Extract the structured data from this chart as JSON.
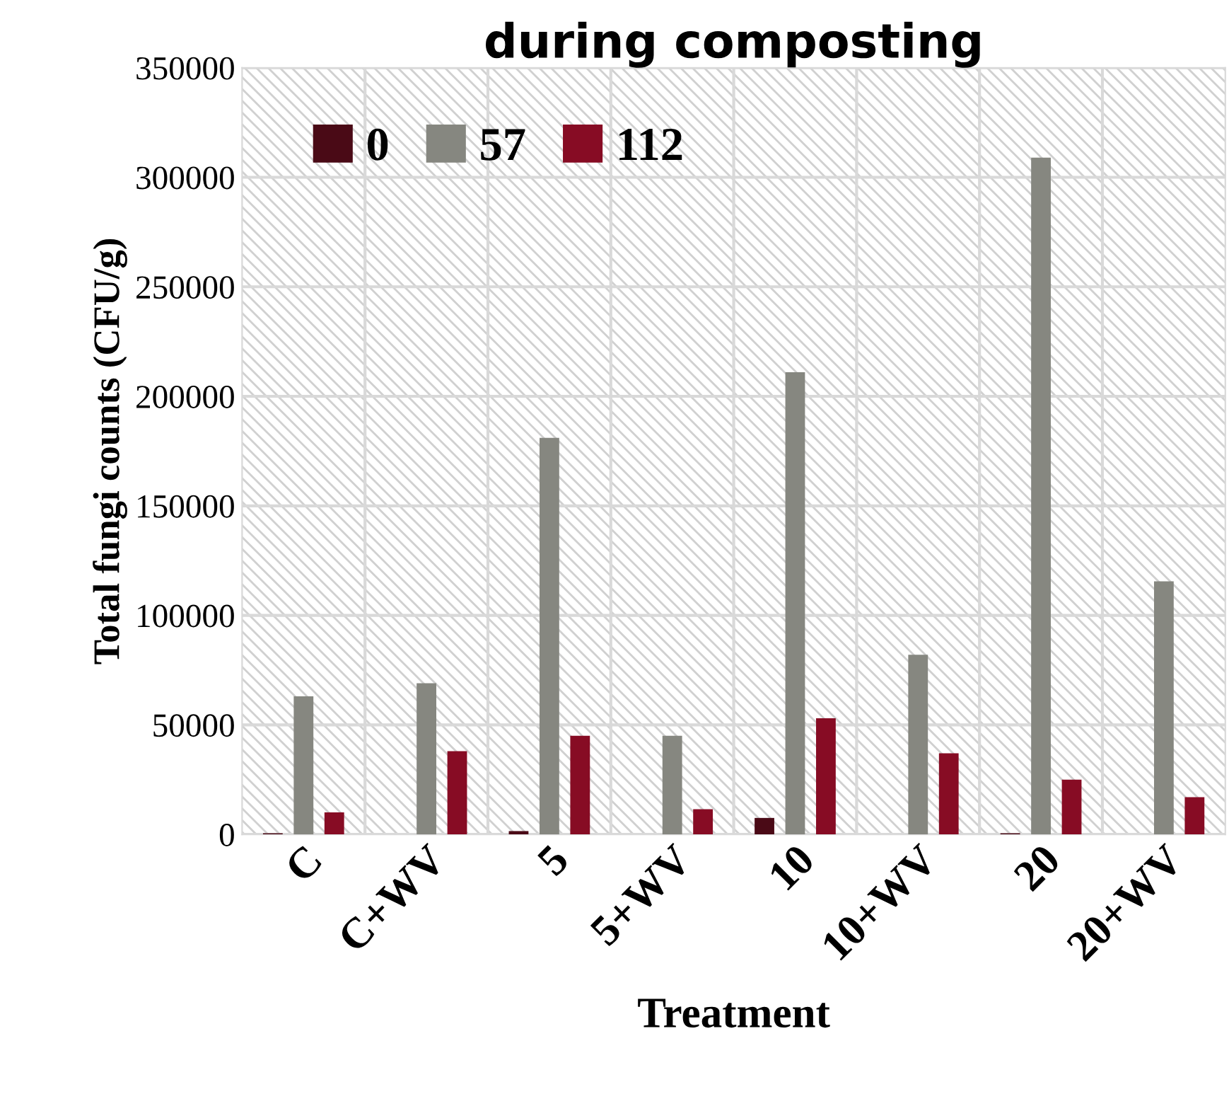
{
  "chart_data": {
    "type": "bar",
    "title": "during composting",
    "xlabel": "Treatment",
    "ylabel": "Total fungi counts (CFU/g)",
    "categories": [
      "C",
      "C+WV",
      "5",
      "5+WV",
      "10",
      "10+WV",
      "20",
      "20+WV"
    ],
    "series": [
      {
        "name": "0",
        "color": "#4a0a16",
        "values": [
          500,
          0,
          1500,
          0,
          7500,
          0,
          500,
          0
        ]
      },
      {
        "name": "57",
        "color": "#868780",
        "values": [
          63000,
          69000,
          181000,
          45000,
          211000,
          82000,
          309000,
          115500
        ]
      },
      {
        "name": "112",
        "color": "#870c24",
        "values": [
          10000,
          38000,
          45000,
          11500,
          53000,
          37000,
          25000,
          17000
        ]
      }
    ],
    "ylim": [
      0,
      350000
    ],
    "yticks": [
      0,
      50000,
      100000,
      150000,
      200000,
      250000,
      300000,
      350000
    ],
    "grid": true,
    "legend": "top left"
  }
}
